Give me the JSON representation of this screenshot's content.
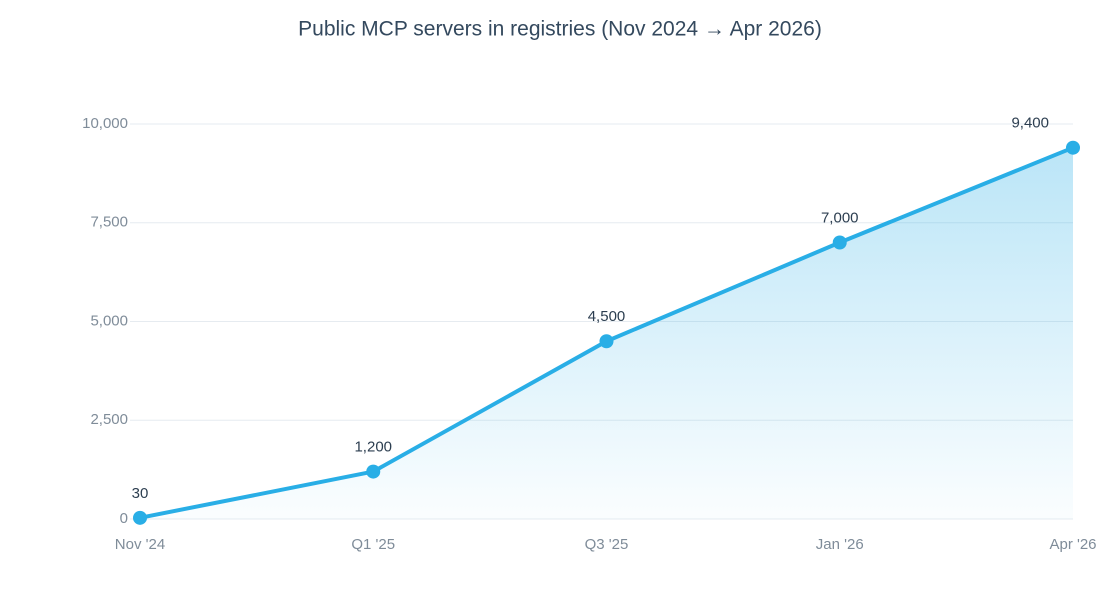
{
  "chart_data": {
    "type": "line",
    "title": "Public MCP servers in registries (Nov 2024 → Apr 2026)",
    "categories": [
      "Nov '24",
      "Q1 '25",
      "Q3 '25",
      "Jan '26",
      "Apr '26"
    ],
    "values": [
      30,
      1200,
      4500,
      7000,
      9400
    ],
    "value_labels": [
      "30",
      "1,200",
      "4,500",
      "7,000",
      "9,400"
    ],
    "color": "#29aee6",
    "area": true,
    "ylim": [
      0,
      10000
    ],
    "yticks": [
      0,
      {
        "value": 2500,
        "label": "2,500"
      },
      {
        "value": 5000,
        "label": "5,000"
      },
      {
        "value": 7500,
        "label": "7,500"
      },
      {
        "value": 10000,
        "label": "10,000"
      }
    ],
    "grid": true
  }
}
